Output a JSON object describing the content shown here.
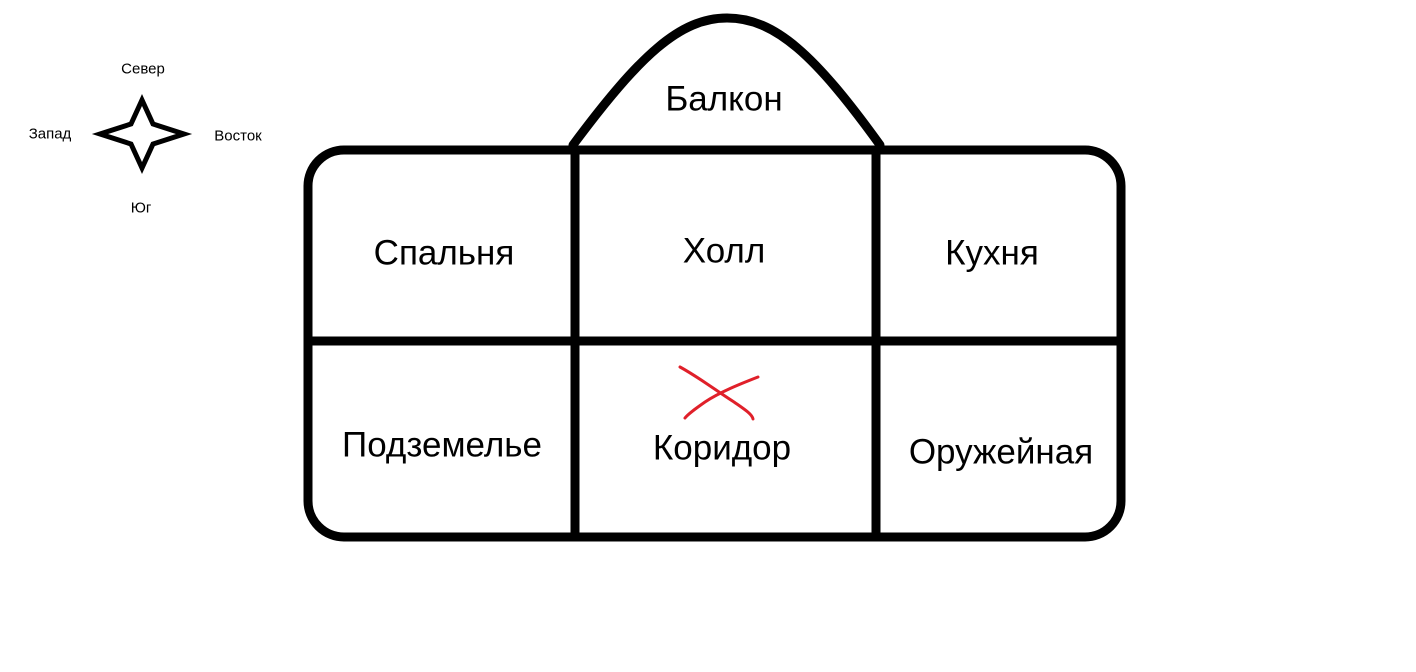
{
  "compass": {
    "north": "Север",
    "south": "Юг",
    "west": "Запад",
    "east": "Восток"
  },
  "rooms": {
    "balcony": "Балкон",
    "bedroom": "Спальня",
    "hall": "Холл",
    "kitchen": "Кухня",
    "dungeon": "Подземелье",
    "corridor": "Коридор",
    "armory": "Оружейная"
  },
  "colors": {
    "line": "#000000",
    "mark": "#e0202a"
  }
}
